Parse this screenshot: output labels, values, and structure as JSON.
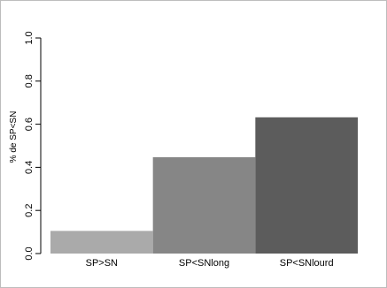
{
  "chart_data": {
    "type": "bar",
    "categories": [
      "SP>SN",
      "SP<SNlong",
      "SP<SNlourd"
    ],
    "values": [
      0.105,
      0.447,
      0.632
    ],
    "colors": [
      "#aaaaaa",
      "#868686",
      "#5c5c5c"
    ],
    "ylabel": "% de SP<SN",
    "ylim": [
      0,
      1
    ],
    "yticks": [
      0.0,
      0.2,
      0.4,
      0.6,
      0.8,
      1.0
    ],
    "ytick_labels": [
      "0.0",
      "0.2",
      "0.4",
      "0.6",
      "0.8",
      "1.0"
    ],
    "grid": false,
    "legend": "none"
  }
}
